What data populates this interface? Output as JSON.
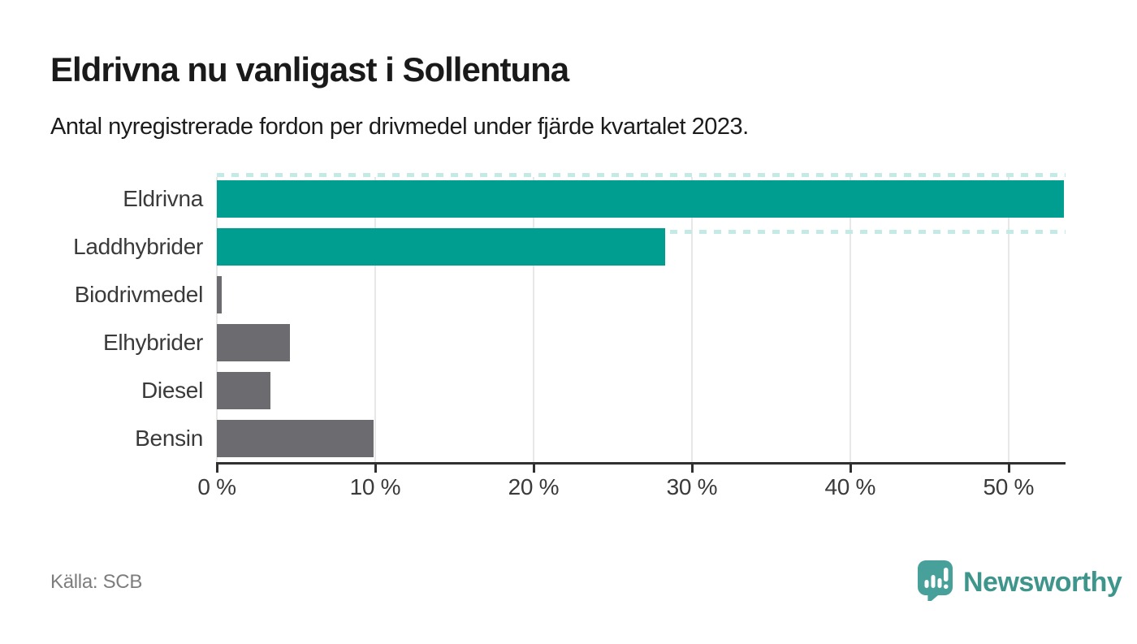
{
  "header": {
    "title": "Eldrivna nu vanligast i Sollentuna",
    "subtitle": "Antal nyregistrerade fordon per drivmedel under fjärde kvartalet 2023."
  },
  "chart_data": {
    "type": "bar",
    "orientation": "horizontal",
    "title": "Eldrivna nu vanligast i Sollentuna",
    "subtitle": "Antal nyregistrerade fordon per drivmedel under fjärde kvartalet 2023.",
    "categories": [
      "Eldrivna",
      "Laddhybrider",
      "Biodrivmedel",
      "Elhybrider",
      "Diesel",
      "Bensin"
    ],
    "values": [
      53.5,
      28.3,
      0.3,
      4.6,
      3.4,
      9.9
    ],
    "unit": "%",
    "xlim": [
      0,
      53.6
    ],
    "xticks": [
      0,
      10,
      20,
      30,
      40,
      50
    ],
    "xtick_labels": [
      "0 %",
      "10 %",
      "20 %",
      "30 %",
      "40 %",
      "50 %"
    ],
    "bar_colors": [
      "#009e90",
      "#009e90",
      "#6c6c70",
      "#6c6c70",
      "#6c6c70",
      "#6c6c70"
    ],
    "highlight_color": "#009e90",
    "default_color": "#6c6c70",
    "guide_dash_color": "#c3eae5",
    "grid": true,
    "gridline_color": "#e7e7e7",
    "axis_color": "#303030",
    "dashed_guide_rows": [
      0,
      1
    ],
    "legend": "none"
  },
  "footer": {
    "source": "Källa: SCB",
    "brand": "Newsworthy",
    "brand_color": "#3e958c",
    "logo_icon_color": "#47a099"
  }
}
